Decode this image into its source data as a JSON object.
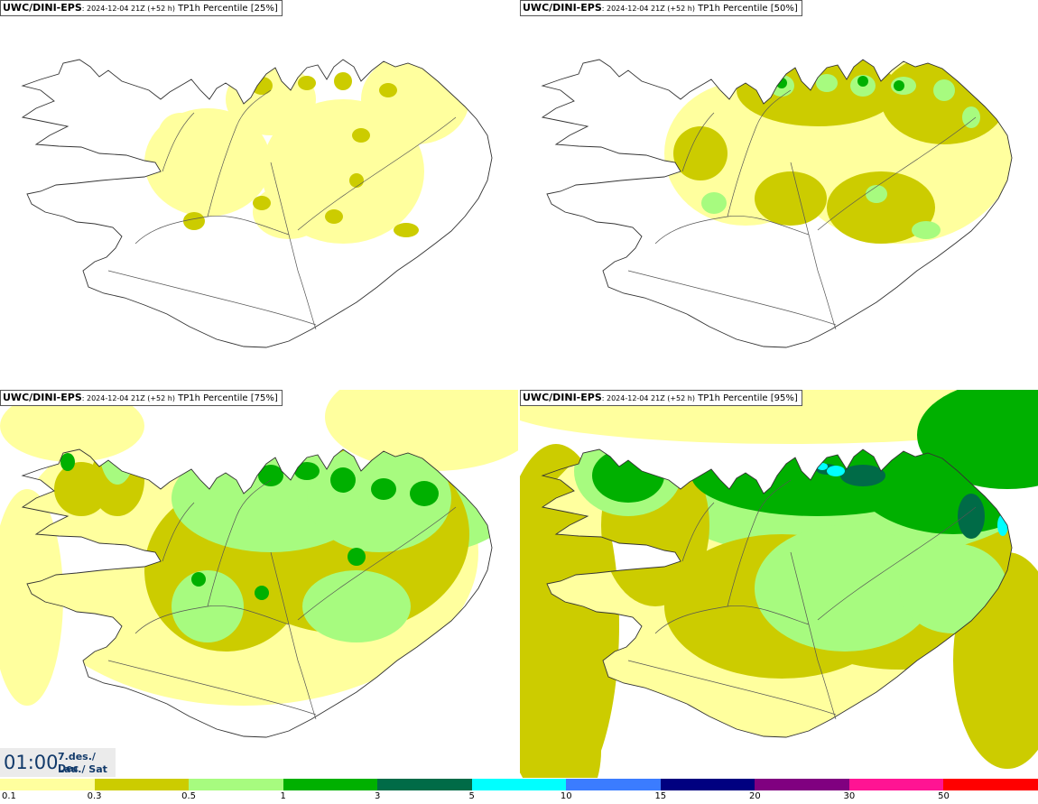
{
  "panels": [
    {
      "model": "UWC/DINI-EPS",
      "meta": ": 2024-12-04 21Z (+52 h)",
      "title": "TP1h Percentile [25%]",
      "level": 0
    },
    {
      "model": "UWC/DINI-EPS",
      "meta": ": 2024-12-04 21Z (+52 h)",
      "title": "TP1h Percentile [50%]",
      "level": 1
    },
    {
      "model": "UWC/DINI-EPS",
      "meta": ": 2024-12-04 21Z (+52 h)",
      "title": "TP1h Percentile [75%]",
      "level": 2
    },
    {
      "model": "UWC/DINI-EPS",
      "meta": ": 2024-12-04 21Z (+52 h)",
      "title": "TP1h Percentile [95%]",
      "level": 3
    }
  ],
  "timebox": {
    "time": "01:00",
    "date_line1": "7.des./ Dec",
    "date_line2": "Lau./ Sat"
  },
  "legend": {
    "colors": [
      "#ffff9e",
      "#cccc00",
      "#a7fb7f",
      "#00b000",
      "#006b47",
      "#00ffff",
      "#3b7cff",
      "#000080",
      "#800080",
      "#ff1493",
      "#ff0000"
    ],
    "ticks": [
      "0.1",
      "0.3",
      "0.5",
      "1",
      "3",
      "5",
      "10",
      "15",
      "20",
      "30",
      "50"
    ]
  }
}
